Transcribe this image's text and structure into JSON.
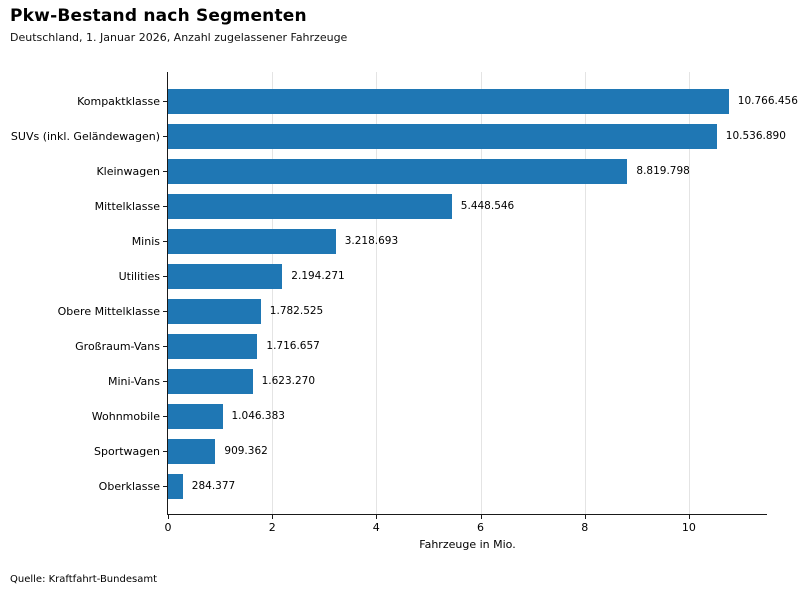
{
  "header": {
    "title": "Pkw-Bestand nach Segmenten",
    "subtitle": "Deutschland, 1. Januar 2026, Anzahl zugelassener Fahrzeuge"
  },
  "footer": {
    "source": "Quelle: Kraftfahrt-Bundesamt"
  },
  "chart_data": {
    "type": "bar",
    "orientation": "horizontal",
    "title": "Pkw-Bestand nach Segmenten",
    "subtitle": "Deutschland, 1. Januar 2026, Anzahl zugelassener Fahrzeuge",
    "xlabel": "Fahrzeuge in Mio.",
    "ylabel": "",
    "xlim": [
      0,
      11.5
    ],
    "xticks": [
      0,
      2,
      4,
      6,
      8,
      10
    ],
    "grid": "vertical",
    "legend": "none",
    "bar_color": "#1f77b4",
    "categories": [
      "Kompaktklasse",
      "SUVs (inkl. Geländewagen)",
      "Kleinwagen",
      "Mittelklasse",
      "Minis",
      "Utilities",
      "Obere Mittelklasse",
      "Großraum-Vans",
      "Mini-Vans",
      "Wohnmobile",
      "Sportwagen",
      "Oberklasse"
    ],
    "values": [
      10766456,
      10536890,
      8819798,
      5448546,
      3218693,
      2194271,
      1782525,
      1716657,
      1623270,
      1046383,
      909362,
      284377
    ],
    "value_labels": [
      "10.766.456",
      "10.536.890",
      "8.819.798",
      "5.448.546",
      "3.218.693",
      "2.194.271",
      "1.782.525",
      "1.716.657",
      "1.623.270",
      "1.046.383",
      "909.362",
      "284.377"
    ],
    "source": "Quelle: Kraftfahrt-Bundesamt"
  }
}
